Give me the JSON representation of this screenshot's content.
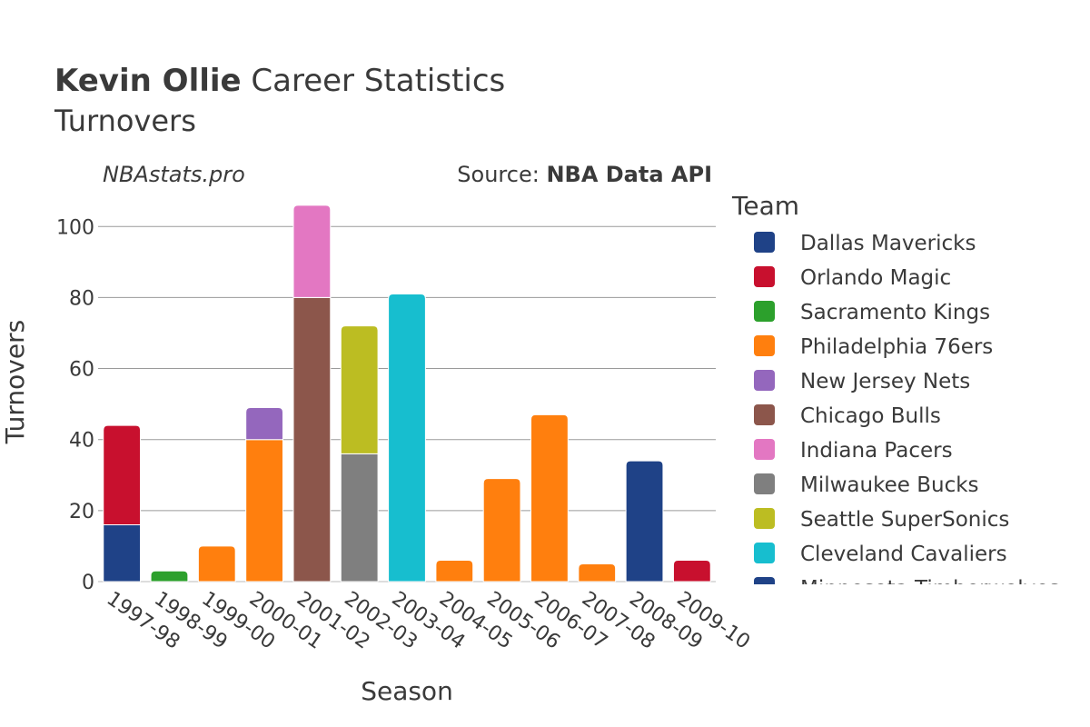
{
  "header": {
    "title_bold": "Kevin Ollie",
    "title_rest": " Career Statistics",
    "subtitle": "Turnovers",
    "watermark": "NBAstats.pro",
    "source_prefix": "Source: ",
    "source_name": "NBA Data API"
  },
  "chart_data": {
    "type": "bar",
    "stacked": true,
    "xlabel": "Season",
    "ylabel": "Turnovers",
    "ylim": [
      0,
      108
    ],
    "yticks": [
      0,
      20,
      40,
      60,
      80,
      100
    ],
    "grid": true,
    "legend_title": "Team",
    "legend_position": "right",
    "categories": [
      "1997-98",
      "1998-99",
      "1999-00",
      "2000-01",
      "2001-02",
      "2002-03",
      "2003-04",
      "2004-05",
      "2005-06",
      "2006-07",
      "2007-08",
      "2008-09",
      "2009-10"
    ],
    "series": [
      {
        "name": "Dallas Mavericks",
        "color": "#1f4287",
        "values": [
          16,
          0,
          0,
          0,
          0,
          0,
          0,
          0,
          0,
          0,
          0,
          0,
          0
        ]
      },
      {
        "name": "Orlando Magic",
        "color": "#c8102e",
        "values": [
          28,
          0,
          0,
          0,
          0,
          0,
          0,
          0,
          0,
          0,
          0,
          0,
          6
        ]
      },
      {
        "name": "Sacramento Kings",
        "color": "#2ca02c",
        "values": [
          0,
          3,
          0,
          0,
          0,
          0,
          0,
          0,
          0,
          0,
          0,
          0,
          0
        ]
      },
      {
        "name": "Philadelphia 76ers",
        "color": "#ff7f0e",
        "values": [
          0,
          0,
          10,
          40,
          0,
          0,
          0,
          6,
          29,
          47,
          5,
          0,
          0
        ]
      },
      {
        "name": "New Jersey Nets",
        "color": "#9467bd",
        "values": [
          0,
          0,
          0,
          9,
          0,
          0,
          0,
          0,
          0,
          0,
          0,
          0,
          0
        ]
      },
      {
        "name": "Chicago Bulls",
        "color": "#8c564b",
        "values": [
          0,
          0,
          0,
          0,
          80,
          0,
          0,
          0,
          0,
          0,
          0,
          0,
          0
        ]
      },
      {
        "name": "Indiana Pacers",
        "color": "#e377c2",
        "values": [
          0,
          0,
          0,
          0,
          26,
          0,
          0,
          0,
          0,
          0,
          0,
          0,
          0
        ]
      },
      {
        "name": "Milwaukee Bucks",
        "color": "#7f7f7f",
        "values": [
          0,
          0,
          0,
          0,
          0,
          36,
          0,
          0,
          0,
          0,
          0,
          0,
          0
        ]
      },
      {
        "name": "Seattle SuperSonics",
        "color": "#bcbd22",
        "values": [
          0,
          0,
          0,
          0,
          0,
          36,
          0,
          0,
          0,
          0,
          0,
          0,
          0
        ]
      },
      {
        "name": "Cleveland Cavaliers",
        "color": "#17becf",
        "values": [
          0,
          0,
          0,
          0,
          0,
          0,
          81,
          0,
          0,
          0,
          0,
          0,
          0
        ]
      },
      {
        "name": "Minnesota Timberwolves",
        "color": "#1f4287",
        "values": [
          0,
          0,
          0,
          0,
          0,
          0,
          0,
          0,
          0,
          0,
          0,
          34,
          0
        ]
      }
    ]
  }
}
